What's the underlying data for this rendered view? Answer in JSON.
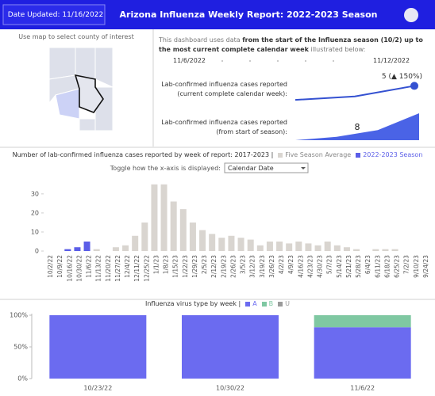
{
  "header": {
    "date_updated": "Date Updated: 11/16/2022",
    "title": "Arizona Influenza Weekly Report: 2022-2023 Season"
  },
  "map": {
    "instruction": "Use map to select county of interest"
  },
  "summary": {
    "intro": [
      "This dashboard uses data ",
      "from the start of the Influenza season (10/2) up to the most current complete calendar week",
      " illustrated below:"
    ],
    "start_date": "11/6/2022",
    "end_date": "11/12/2022",
    "current_week_label": "Lab-confirmed influenza cases reported (current complete calendar week):",
    "season_label": "Lab-confirmed influenza cases reported (from start of season):"
  },
  "toggle": {
    "label": "Toggle how the x-axis is displayed:",
    "selected": "Calendar Date"
  },
  "chart_data": [
    {
      "type": "line",
      "values": [
        1,
        2,
        5
      ],
      "value_labels": [
        null,
        null,
        "5 (▲ 150%)"
      ],
      "color": "#3451d1",
      "ylim": [
        -1,
        6
      ]
    },
    {
      "type": "area",
      "values": [
        0,
        1,
        3,
        8
      ],
      "color": "#4a63e6",
      "ylim": [
        0,
        8
      ]
    },
    {
      "type": "bar",
      "title": "Number of lab-confirmed influenza cases reported by week of report: 2017-2023 |",
      "categories": [
        "10/2/22",
        "10/9/22",
        "10/16/22",
        "10/30/22",
        "11/6/22",
        "11/13/22",
        "11/20/22",
        "11/27/22",
        "12/4/22",
        "12/11/22",
        "12/25/22",
        "1/1/23",
        "1/8/23",
        "1/15/23",
        "1/22/23",
        "1/29/23",
        "2/5/23",
        "2/12/23",
        "2/19/23",
        "2/26/23",
        "3/5/23",
        "3/12/23",
        "3/19/23",
        "3/26/23",
        "4/2/23",
        "4/9/23",
        "4/16/23",
        "4/23/23",
        "4/30/23",
        "5/7/23",
        "5/14/23",
        "5/21/23",
        "5/28/23",
        "6/4/23",
        "6/11/23",
        "6/18/23",
        "6/25/23",
        "7/2/23",
        "9/10/23",
        "9/24/23"
      ],
      "series": [
        {
          "name": "Five Season Average",
          "color": "#d9d5d0",
          "values": [
            0,
            0,
            1,
            1,
            1,
            1,
            0,
            2,
            3,
            8,
            15,
            35,
            35,
            26,
            22,
            15,
            11,
            9,
            7,
            8,
            7,
            6,
            3,
            5,
            5,
            4,
            5,
            4,
            3,
            5,
            3,
            2,
            1,
            0,
            1,
            1,
            1,
            0,
            0,
            0
          ]
        },
        {
          "name": "2022-2023 Season",
          "color": "#5b5ee8",
          "values": [
            0,
            0,
            1,
            2,
            5,
            null,
            null,
            null,
            null,
            null,
            null,
            null,
            null,
            null,
            null,
            null,
            null,
            null,
            null,
            null,
            null,
            null,
            null,
            null,
            null,
            null,
            null,
            null,
            null,
            null,
            null,
            null,
            null,
            null,
            null,
            null,
            null,
            null,
            null,
            null
          ]
        }
      ],
      "ylim": [
        0,
        37
      ],
      "yticks": [
        0,
        10,
        20,
        30
      ]
    },
    {
      "type": "stacked_bar",
      "title": "Influenza virus type by week |",
      "categories": [
        "10/23/22",
        "10/30/22",
        "11/6/22"
      ],
      "series": [
        {
          "name": "A",
          "color": "#6b6bf0",
          "values": [
            100,
            100,
            81
          ]
        },
        {
          "name": "B",
          "color": "#7fc8a2",
          "values": [
            0,
            0,
            19
          ]
        },
        {
          "name": "U",
          "color": "#9a9a9a",
          "values": [
            0,
            0,
            0
          ]
        }
      ],
      "ylim": [
        0,
        100
      ],
      "yticks": [
        {
          "value": 0,
          "label": "0%"
        },
        {
          "value": 50,
          "label": "50%"
        },
        {
          "value": 100,
          "label": "100%"
        }
      ]
    }
  ]
}
